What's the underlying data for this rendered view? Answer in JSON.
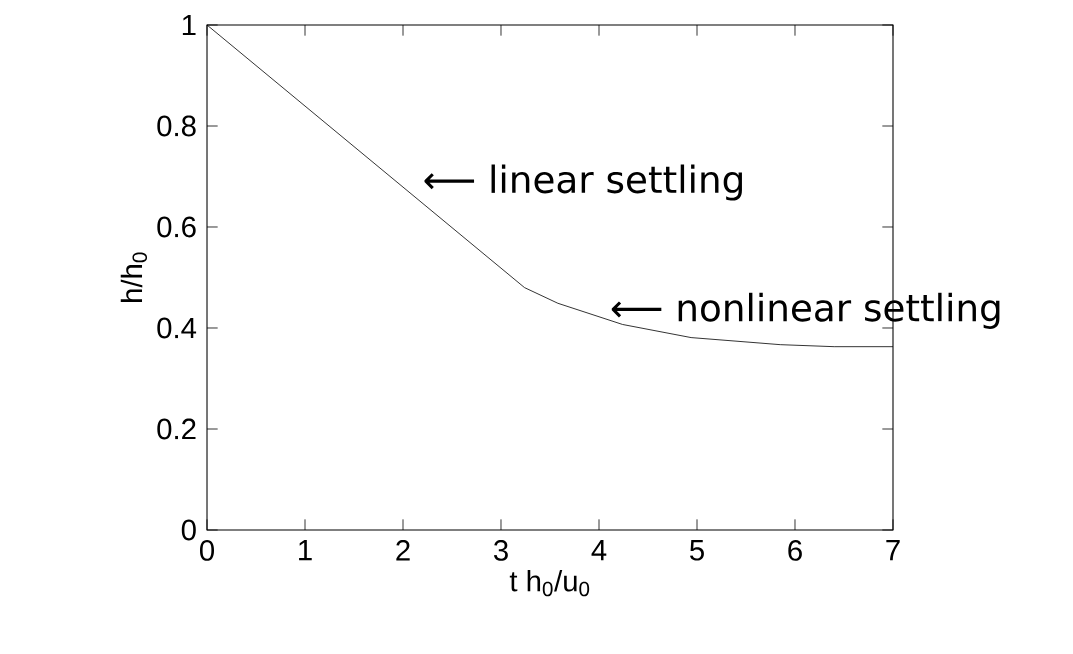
{
  "chart_data": {
    "type": "line",
    "xlabel": "t h$_{0}$/u$_{0}$",
    "ylabel": "h/h$_{0}$",
    "x": [
      0,
      3.24,
      3.58,
      4.24,
      4.94,
      5.85,
      6.4,
      7
    ],
    "series": [
      {
        "color": "#000000",
        "values": [
          1,
          0.48,
          0.449,
          0.407,
          0.381,
          0.367,
          0.363,
          0.363
        ]
      }
    ],
    "xlim": [
      0,
      7
    ],
    "ylim": [
      0,
      1
    ],
    "xticks": [
      0,
      1,
      2,
      3,
      4,
      5,
      6,
      7
    ],
    "yticks": [
      0,
      0.2,
      0.4,
      0.6,
      0.8,
      1
    ],
    "annotations": [
      "⟵ linear settling",
      "⟵ nonlinear settling"
    ],
    "grid": false,
    "line_style": "solid",
    "marker": "none"
  }
}
